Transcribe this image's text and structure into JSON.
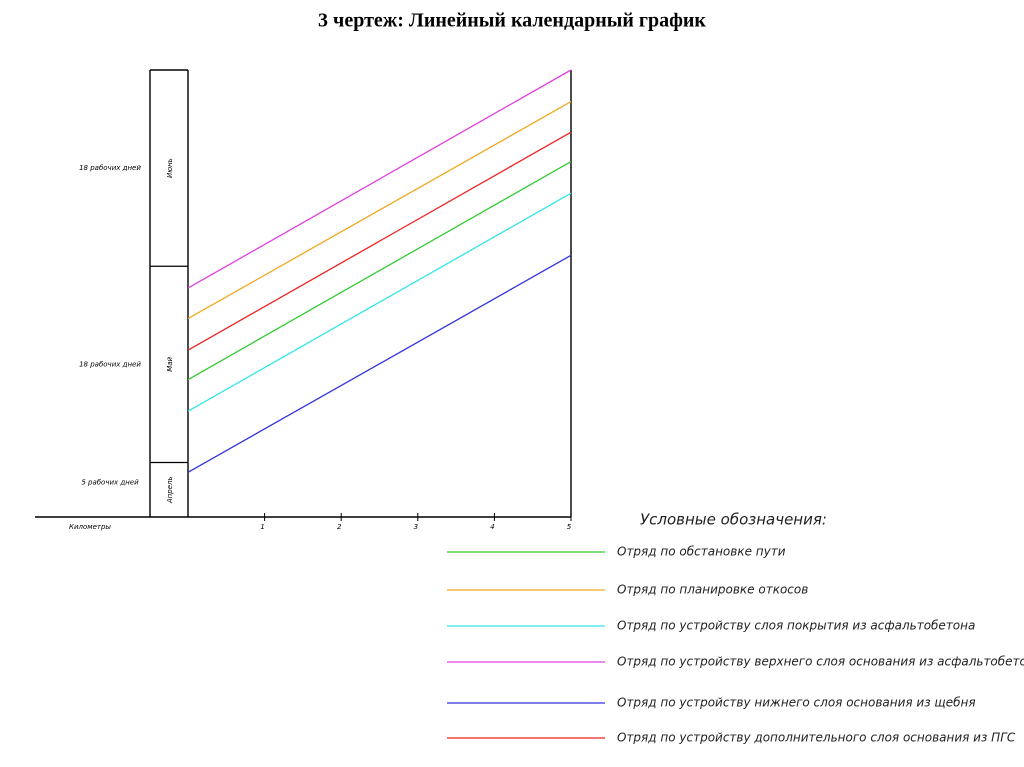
{
  "chart_data": {
    "type": "line",
    "title": "3 чертеж: Линейный календарный график",
    "x_label": "Километры",
    "x": [
      0,
      5
    ],
    "xlim": [
      0,
      5
    ],
    "xticks": [
      1,
      2,
      3,
      4,
      5
    ],
    "ylim": [
      0,
      41
    ],
    "months": [
      {
        "name": "Апрель",
        "label": "5 рабочих дней",
        "start": 0,
        "end": 5
      },
      {
        "name": "Май",
        "label": "18 рабочих дней",
        "start": 5,
        "end": 23
      },
      {
        "name": "Июнь",
        "label": "18 рабочих дней",
        "start": 23,
        "end": 41
      }
    ],
    "legend_title": "Условные обозначения:",
    "series": [
      {
        "name": "Отряд по обстановке пути",
        "color": "#33cc33",
        "values": [
          12.6,
          32.6
        ]
      },
      {
        "name": "Отряд по планировке откосов",
        "color": "#f0a81e",
        "values": [
          18.2,
          38.1
        ]
      },
      {
        "name": "Отряд по устройству слоя покрытия из асфальтобетона",
        "color": "#33e6e6",
        "values": [
          9.7,
          29.7
        ]
      },
      {
        "name": "Отряд по устройству верхнего слоя основания из асфальтобетона",
        "color": "#e040e0",
        "values": [
          21.0,
          41.0
        ]
      },
      {
        "name": "Отряд по устройству нижнего слоя основания из щебня",
        "color": "#3333dd",
        "values": [
          4.1,
          24.0
        ]
      },
      {
        "name": "Отряд по устройству дополнительного слоя основания из ПГС",
        "color": "#ee2222",
        "values": [
          15.3,
          35.3
        ]
      }
    ]
  }
}
